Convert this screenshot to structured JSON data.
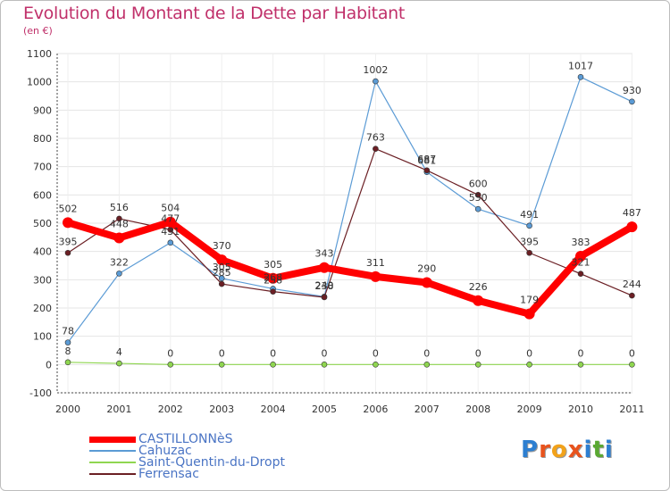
{
  "title": "Evolution du Montant de la Dette par Habitant",
  "subtitle": "(en €)",
  "brand": "Proxiti",
  "chart_data": {
    "type": "line",
    "x": [
      "2000",
      "2001",
      "2002",
      "2003",
      "2004",
      "2005",
      "2006",
      "2007",
      "2008",
      "2009",
      "2010",
      "2011"
    ],
    "ylim": [
      -100,
      1100
    ],
    "yticks": [
      -100,
      0,
      100,
      200,
      300,
      400,
      500,
      600,
      700,
      800,
      900,
      1000,
      1100
    ],
    "grid": true,
    "legend_position": "bottom-left",
    "series": [
      {
        "name": "CASTILLONNèS",
        "color": "#ff0000",
        "values": [
          502,
          448,
          504,
          370,
          305,
          343,
          311,
          290,
          226,
          179,
          383,
          487
        ]
      },
      {
        "name": "Cahuzac",
        "color": "#5b9bd5",
        "values": [
          78,
          322,
          431,
          305,
          268,
          240,
          1002,
          681,
          550,
          491,
          1017,
          930
        ]
      },
      {
        "name": "Saint-Quentin-du-Dropt",
        "color": "#8fd650",
        "values": [
          8,
          4,
          0,
          0,
          0,
          0,
          0,
          0,
          0,
          0,
          0,
          0
        ]
      },
      {
        "name": "Ferrensac",
        "color": "#6b1f24",
        "values": [
          395,
          516,
          477,
          285,
          258,
          238,
          763,
          687,
          600,
          395,
          321,
          244
        ]
      }
    ]
  }
}
